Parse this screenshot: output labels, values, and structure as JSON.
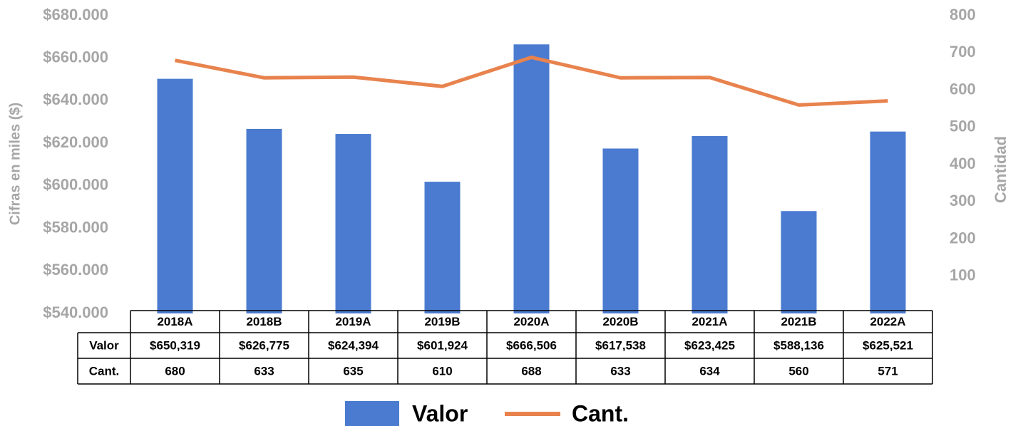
{
  "chart_data": {
    "type": "bar",
    "categories": [
      "2018A",
      "2018B",
      "2019A",
      "2019B",
      "2020A",
      "2020B",
      "2021A",
      "2021B",
      "2022A"
    ],
    "series": [
      {
        "name": "Valor",
        "type": "bar",
        "color": "#4a7bd0",
        "values": [
          650319,
          626775,
          624394,
          601924,
          666506,
          617538,
          623425,
          588136,
          625521
        ],
        "value_labels": [
          "$650,319",
          "$626,775",
          "$624,394",
          "$601,924",
          "$666,506",
          "$617,538",
          "$623,425",
          "$588,136",
          "$625,521"
        ]
      },
      {
        "name": "Cant.",
        "type": "line",
        "axis": "y2",
        "color": "#e8834e",
        "values": [
          680,
          633,
          635,
          610,
          688,
          633,
          634,
          560,
          571
        ]
      }
    ],
    "y_label": "Cifras en miles ($)",
    "y2_label": "Cantidad",
    "ylim": [
      540000,
      680000
    ],
    "yticks": [
      {
        "value": 540000,
        "label": "$540.000"
      },
      {
        "value": 560000,
        "label": "$560.000"
      },
      {
        "value": 580000,
        "label": "$580.000"
      },
      {
        "value": 600000,
        "label": "$600.000"
      },
      {
        "value": 620000,
        "label": "$620.000"
      },
      {
        "value": 640000,
        "label": "$640.000"
      },
      {
        "value": 660000,
        "label": "$660.000"
      },
      {
        "value": 680000,
        "label": "$680.000"
      }
    ],
    "y2lim": [
      0,
      800
    ],
    "y2ticks": [
      100,
      200,
      300,
      400,
      500,
      600,
      700,
      800
    ],
    "grid": false
  }
}
